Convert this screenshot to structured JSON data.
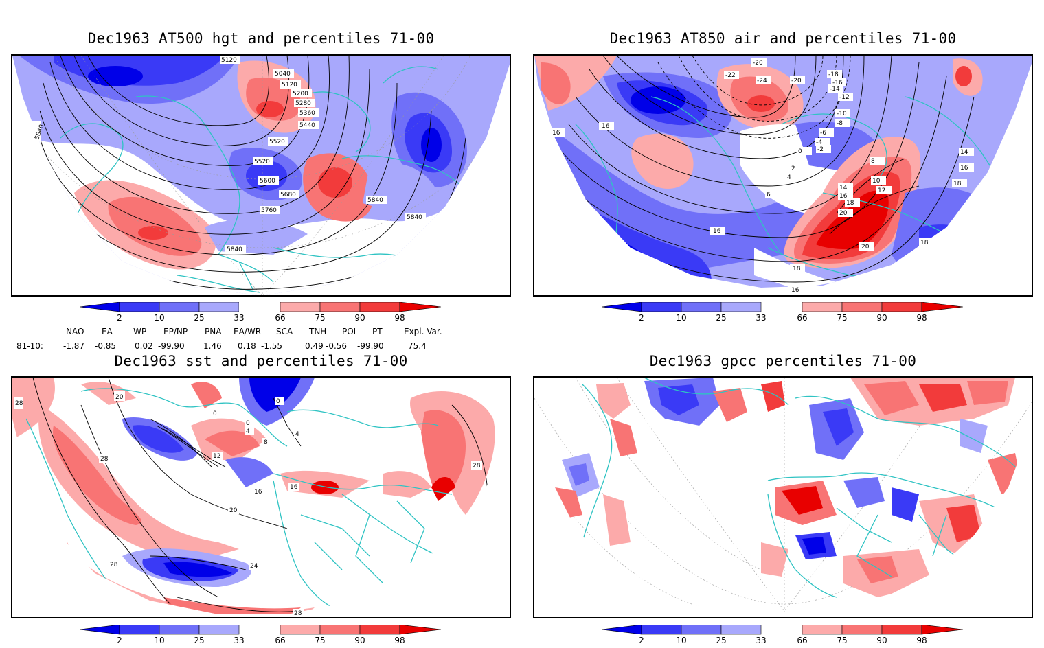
{
  "panels": [
    {
      "id": "tl",
      "title": "Dec1963 AT500 hgt and percentiles 71-00",
      "contour_labels": [
        "5120",
        "5040",
        "5120",
        "5200",
        "5280",
        "5360",
        "5440",
        "5520",
        "5520",
        "5600",
        "5680",
        "5760",
        "5840",
        "5840",
        "5840",
        "5840"
      ]
    },
    {
      "id": "tr",
      "title": "Dec1963 AT850 air and percentiles 71-00",
      "contour_labels": [
        "-20",
        "-22",
        "-24",
        "-20",
        "-18",
        "-16",
        "-14",
        "-12",
        "-10",
        "-8",
        "-6",
        "-4",
        "-2",
        "0",
        "2",
        "4",
        "6",
        "8",
        "10",
        "12",
        "14",
        "16",
        "18",
        "20",
        "14",
        "16",
        "18",
        "18",
        "16",
        "16",
        "16",
        "16",
        "18",
        "20"
      ]
    },
    {
      "id": "bl",
      "title": "Dec1963 sst and percentiles 71-00",
      "contour_labels": [
        "28",
        "20",
        "0",
        "0",
        "0",
        "4",
        "8",
        "4",
        "12",
        "16",
        "16",
        "20",
        "24",
        "28",
        "28",
        "28",
        "28"
      ]
    },
    {
      "id": "br",
      "title": "Dec1963 gpcc percentiles 71-00",
      "contour_labels": []
    }
  ],
  "colorbar": {
    "labels": [
      "2",
      "10",
      "25",
      "33",
      "66",
      "75",
      "90",
      "98"
    ],
    "colors": {
      "p2": "#0000e8",
      "p10": "#3a3af6",
      "p25": "#7070f8",
      "p33": "#a8a8fc",
      "p66": "#fcaaaa",
      "p75": "#f87474",
      "p90": "#f23b3b",
      "p98": "#e80000"
    }
  },
  "indices": {
    "headers": [
      "NAO",
      "EA",
      "WP",
      "EP/NP",
      "PNA",
      "EA/WR",
      "SCA",
      "TNH",
      "POL",
      "PT",
      "Expl. Var."
    ],
    "row_label": "81-10:",
    "values": [
      "-1.87",
      "-0.85",
      "0.02",
      "-99.90",
      "1.46",
      "0.18",
      "-1.55",
      "0.49",
      "-0.56",
      "-99.90",
      "75.4"
    ]
  },
  "map_colors": {
    "land_outline": "#2fc3c3",
    "contour": "#000000"
  }
}
